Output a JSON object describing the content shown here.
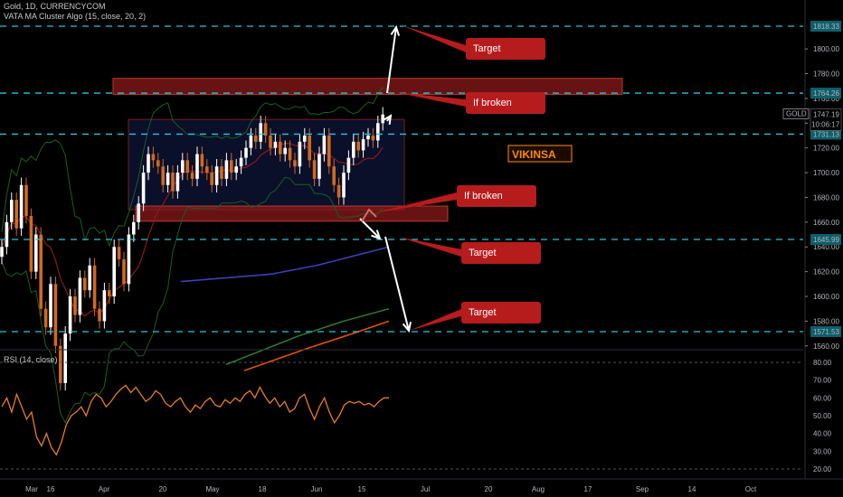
{
  "header": {
    "symbol_line": "Gold, 1D, CURRENCYCOM",
    "indicator_line": "VATA MA Cluster Algo (15, close, 20, 2)",
    "rsi_line": "RSI (14, close)"
  },
  "watermark": "VIKINSA",
  "colors": {
    "background": "#000000",
    "bull_candle": "#ffffff",
    "bear_candle": "#d2691e",
    "level_line": "#26c6da",
    "zone_fill": "#8b1a1a",
    "callout": "#b71c1c",
    "rsi": "#e67e22",
    "ma_blue": "#3f3fbf",
    "ma_green": "#2e7d32",
    "ma_orange": "#e65100",
    "watermark": "#ff8c00"
  },
  "callouts": [
    {
      "text": "Target"
    },
    {
      "text": "If broken"
    },
    {
      "text": "If broken"
    },
    {
      "text": "Target"
    },
    {
      "text": "Target"
    }
  ],
  "price_tags": [
    {
      "value": "1818.33"
    },
    {
      "value": "1764.26"
    },
    {
      "value": "1731.13"
    },
    {
      "value": "1645.99"
    },
    {
      "value": "1571.53"
    }
  ],
  "current_price": {
    "symbol": "GOLD",
    "value": "1747.19",
    "countdown": "10:06:17"
  },
  "chart_data": [
    {
      "type": "candlestick",
      "title": "Gold, 1D, CURRENCYCOM",
      "x_tick_labels": [
        "Mar",
        "16",
        "Apr",
        "20",
        "May",
        "18",
        "Jun",
        "15",
        "Jul",
        "20",
        "Aug",
        "17",
        "Sep",
        "14",
        "Oct"
      ],
      "y_ticks": [
        1560,
        1580,
        1600,
        1620,
        1640,
        1660,
        1680,
        1700,
        1720,
        1740,
        1760,
        1780,
        1800
      ],
      "ylim": [
        1555,
        1830
      ],
      "levels": [
        1818.33,
        1764.26,
        1731.13,
        1645.99,
        1571.53
      ],
      "resistance_zone": [
        1764,
        1774
      ],
      "support_zone": [
        1663,
        1673
      ],
      "consolidation_box": [
        1670,
        1743
      ],
      "last_price": 1747.19,
      "closes": [
        1640,
        1660,
        1678,
        1655,
        1690,
        1665,
        1620,
        1650,
        1590,
        1575,
        1610,
        1560,
        1530,
        1570,
        1600,
        1585,
        1615,
        1605,
        1625,
        1590,
        1580,
        1605,
        1600,
        1640,
        1630,
        1610,
        1650,
        1660,
        1675,
        1700,
        1715,
        1710,
        1705,
        1690,
        1700,
        1685,
        1700,
        1710,
        1700,
        1695,
        1715,
        1705,
        1700,
        1690,
        1705,
        1695,
        1710,
        1700,
        1705,
        1712,
        1720,
        1730,
        1725,
        1740,
        1730,
        1720,
        1725,
        1715,
        1720,
        1710,
        1705,
        1725,
        1730,
        1710,
        1695,
        1715,
        1730,
        1705,
        1690,
        1680,
        1700,
        1712,
        1725,
        1718,
        1727,
        1730,
        1726,
        1740,
        1747
      ],
      "series": [
        {
          "name": "RSI (14, close)",
          "values": [
            55,
            60,
            52,
            62,
            55,
            48,
            52,
            38,
            33,
            40,
            32,
            28,
            35,
            45,
            50,
            52,
            55,
            50,
            58,
            62,
            60,
            55,
            58,
            62,
            65,
            67,
            63,
            66,
            62,
            58,
            60,
            64,
            62,
            57,
            55,
            58,
            60,
            55,
            52,
            56,
            54,
            58,
            60,
            56,
            55,
            59,
            57,
            60,
            58,
            62,
            64,
            60,
            66,
            61,
            57,
            60,
            55,
            58,
            52,
            54,
            60,
            62,
            54,
            48,
            55,
            60,
            52,
            46,
            50,
            56,
            58,
            57,
            58,
            56,
            57,
            55,
            58,
            60,
            60
          ]
        }
      ],
      "rsi_ticks": [
        20,
        30,
        40,
        50,
        60,
        70,
        80
      ],
      "rsi_levels": [
        20,
        80
      ]
    }
  ]
}
